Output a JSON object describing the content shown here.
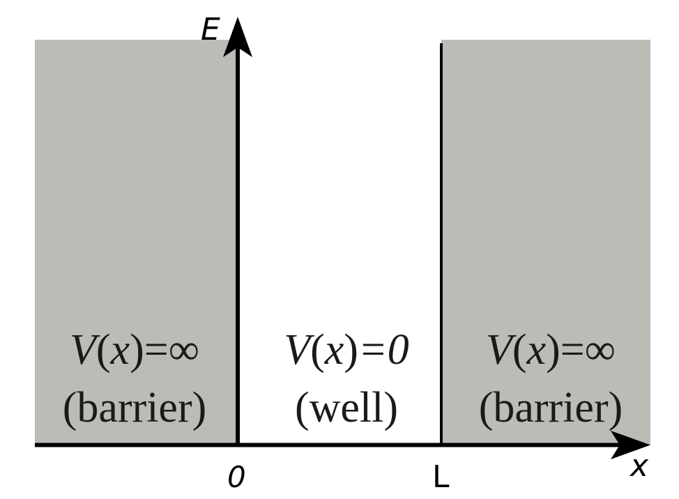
{
  "colors": {
    "barrier_fill": "#bbbcb6",
    "axis": "#000000",
    "background": "#ffffff",
    "text": "#1a1a1a"
  },
  "axes": {
    "y_label": "E",
    "x_label": "x",
    "origin_tick": "0",
    "well_end_tick": "L"
  },
  "regions": {
    "left_barrier": {
      "v_prefix": "V",
      "v_var": "x",
      "v_suffix": "=∞",
      "label": "(barrier)"
    },
    "well": {
      "v_prefix": "V",
      "v_var": "x",
      "v_suffix": "=0",
      "label": "(well)"
    },
    "right_barrier": {
      "v_prefix": "V",
      "v_var": "x",
      "v_suffix": "=∞",
      "label": "(barrier)"
    }
  }
}
